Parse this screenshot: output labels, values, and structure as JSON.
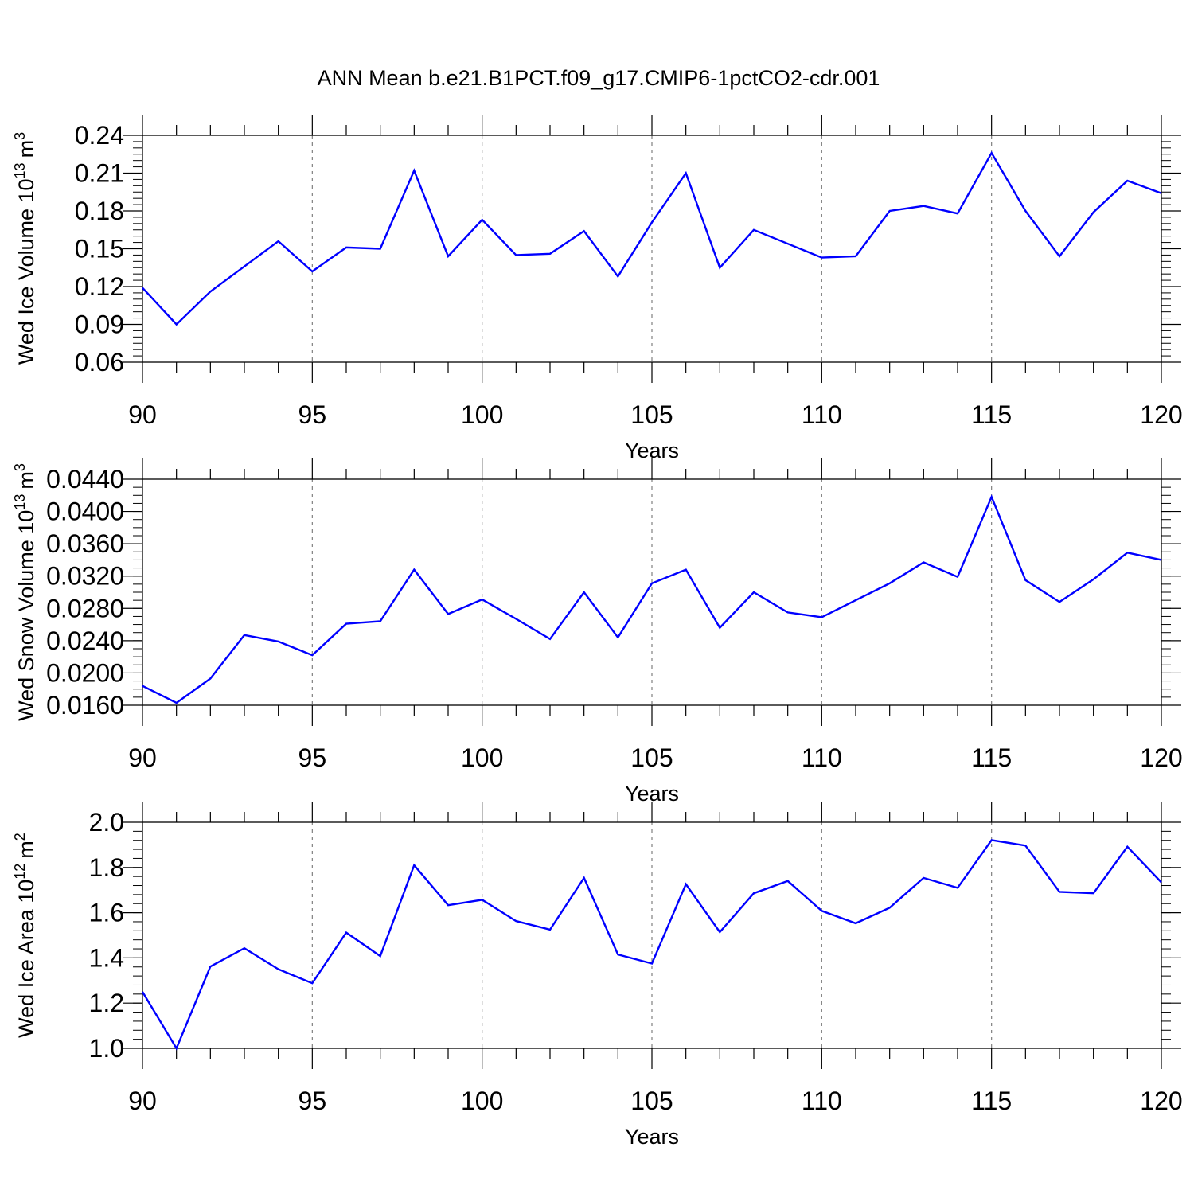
{
  "title": "ANN Mean b.e21.B1PCT.f09_g17.CMIP6-1pctCO2-cdr.001",
  "colors": {
    "line": "#0000ff",
    "axis": "#000000",
    "grid": "#808080",
    "background": "#ffffff"
  },
  "chart_data": [
    {
      "type": "line",
      "xlabel": "Years",
      "ylabel": "Wed Ice Volume 10",
      "ylabel_sup": "13",
      "ylabel_unit": "m",
      "ylabel_unit_sup": "3",
      "xlim": [
        90,
        120
      ],
      "ylim": [
        0.06,
        0.24
      ],
      "xticks": [
        "90",
        "95",
        "100",
        "105",
        "110",
        "115",
        "120"
      ],
      "yticks": [
        "0.06",
        "0.09",
        "0.12",
        "0.15",
        "0.18",
        "0.21",
        "0.24"
      ],
      "grid": "vertical-dashed",
      "x": [
        90,
        91,
        92,
        93,
        94,
        95,
        96,
        97,
        98,
        99,
        100,
        101,
        102,
        103,
        104,
        105,
        106,
        107,
        108,
        109,
        110,
        111,
        112,
        113,
        114,
        115,
        116,
        117,
        118,
        119,
        120
      ],
      "series": [
        {
          "values": [
            0.119,
            0.09,
            0.116,
            0.136,
            0.156,
            0.132,
            0.151,
            0.15,
            0.212,
            0.144,
            0.173,
            0.145,
            0.146,
            0.164,
            0.128,
            0.171,
            0.21,
            0.135,
            0.165,
            0.154,
            0.143,
            0.144,
            0.18,
            0.184,
            0.178,
            0.226,
            0.18,
            0.144,
            0.179,
            0.204,
            0.194
          ]
        }
      ]
    },
    {
      "type": "line",
      "xlabel": "Years",
      "ylabel": "Wed Snow Volume 10",
      "ylabel_sup": "13",
      "ylabel_unit": "m",
      "ylabel_unit_sup": "3",
      "xlim": [
        90,
        120
      ],
      "ylim": [
        0.016,
        0.044
      ],
      "xticks": [
        "90",
        "95",
        "100",
        "105",
        "110",
        "115",
        "120"
      ],
      "yticks": [
        "0.0160",
        "0.0200",
        "0.0240",
        "0.0280",
        "0.0320",
        "0.0360",
        "0.0400",
        "0.0440"
      ],
      "grid": "vertical-dashed",
      "x": [
        90,
        91,
        92,
        93,
        94,
        95,
        96,
        97,
        98,
        99,
        100,
        101,
        102,
        103,
        104,
        105,
        106,
        107,
        108,
        109,
        110,
        111,
        112,
        113,
        114,
        115,
        116,
        117,
        118,
        119,
        120
      ],
      "series": [
        {
          "values": [
            0.0184,
            0.0163,
            0.0193,
            0.0247,
            0.0239,
            0.0222,
            0.0261,
            0.0264,
            0.0328,
            0.0273,
            0.0291,
            0.0267,
            0.0242,
            0.03,
            0.0244,
            0.0311,
            0.0328,
            0.0256,
            0.03,
            0.0275,
            0.0269,
            0.029,
            0.0311,
            0.0337,
            0.0319,
            0.0418,
            0.0315,
            0.0288,
            0.0316,
            0.0349,
            0.034
          ]
        }
      ]
    },
    {
      "type": "line",
      "xlabel": "Years",
      "ylabel": "Wed Ice Area 10",
      "ylabel_sup": "12",
      "ylabel_unit": "m",
      "ylabel_unit_sup": "2",
      "xlim": [
        90,
        120
      ],
      "ylim": [
        1.0,
        2.0
      ],
      "xticks": [
        "90",
        "95",
        "100",
        "105",
        "110",
        "115",
        "120"
      ],
      "yticks": [
        "1.0",
        "1.2",
        "1.4",
        "1.6",
        "1.8",
        "2.0"
      ],
      "grid": "vertical-dashed",
      "x": [
        90,
        91,
        92,
        93,
        94,
        95,
        96,
        97,
        98,
        99,
        100,
        101,
        102,
        103,
        104,
        105,
        106,
        107,
        108,
        109,
        110,
        111,
        112,
        113,
        114,
        115,
        116,
        117,
        118,
        119,
        120
      ],
      "series": [
        {
          "values": [
            1.25,
            1.0,
            1.362,
            1.443,
            1.35,
            1.288,
            1.512,
            1.408,
            1.81,
            1.633,
            1.657,
            1.563,
            1.525,
            1.754,
            1.415,
            1.375,
            1.726,
            1.514,
            1.686,
            1.74,
            1.608,
            1.553,
            1.622,
            1.754,
            1.71,
            1.921,
            1.897,
            1.692,
            1.686,
            1.892,
            1.734
          ]
        }
      ]
    }
  ]
}
